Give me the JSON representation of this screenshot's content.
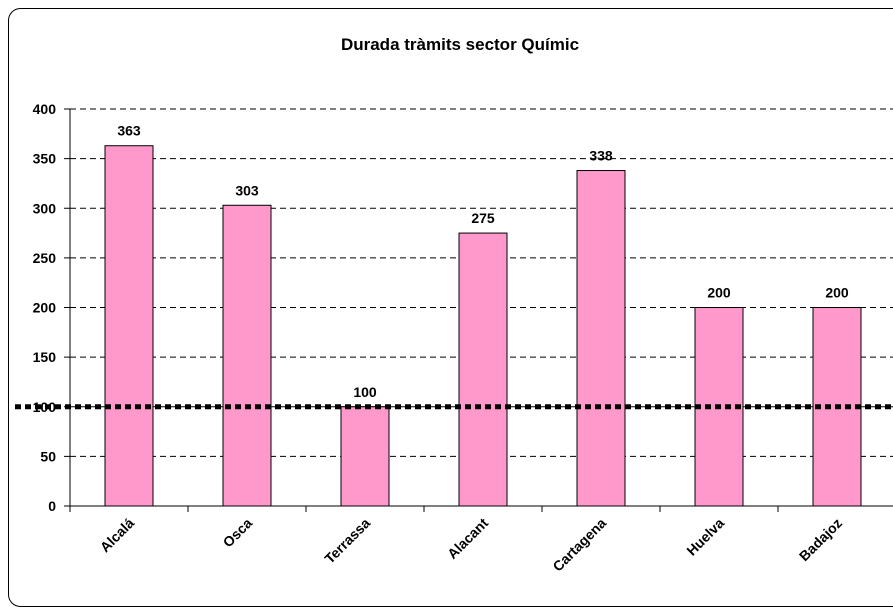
{
  "chart_data": {
    "type": "bar",
    "title": "Durada tràmits sector Químic",
    "categories": [
      "Alcalá",
      "Osca",
      "Terrassa",
      "Alacant",
      "Cartagena",
      "Huelva",
      "Badajoz"
    ],
    "values": [
      363,
      303,
      100,
      275,
      338,
      200,
      200
    ],
    "color": "#ff99cc",
    "ylim": [
      0,
      400
    ],
    "yticks": [
      0,
      50,
      100,
      150,
      200,
      250,
      300,
      350,
      400
    ],
    "grid": true,
    "reference_line": 100
  }
}
